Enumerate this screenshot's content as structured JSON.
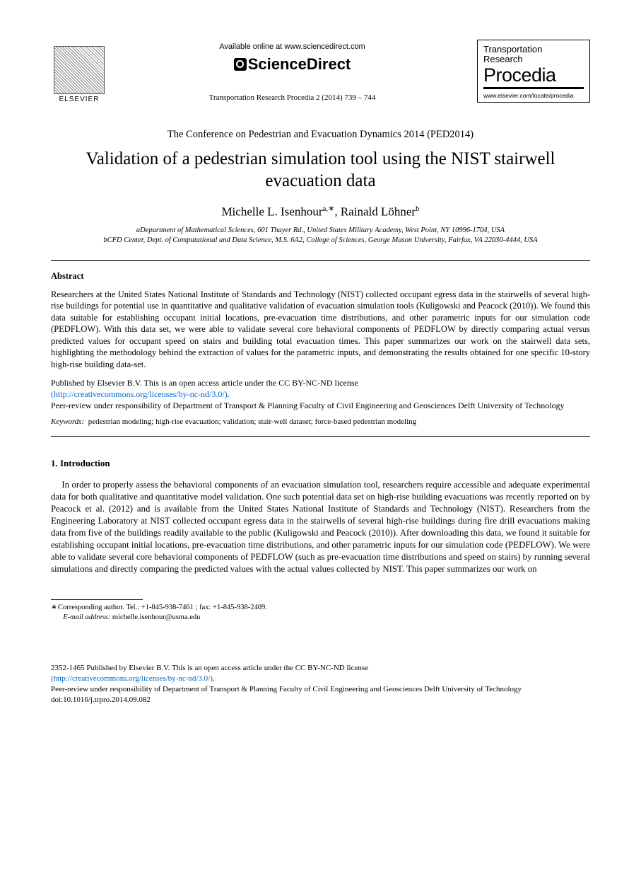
{
  "header": {
    "elsevier_label": "ELSEVIER",
    "available_online": "Available online at www.sciencedirect.com",
    "sciencedirect": "ScienceDirect",
    "journal_reference": "Transportation Research Procedia 2 (2014) 739 – 744",
    "procedia_line1": "Transportation",
    "procedia_line2": "Research",
    "procedia_main": "Procedia",
    "procedia_url": "www.elsevier.com/locate/procedia"
  },
  "conference": "The Conference on Pedestrian and Evacuation Dynamics 2014 (PED2014)",
  "title": "Validation of a pedestrian simulation tool using the NIST stairwell evacuation data",
  "authors_html": "Michelle L. Isenhour",
  "author1_sup": "a,∗",
  "authors_sep": ", ",
  "author2": "Rainald Löhner",
  "author2_sup": "b",
  "affiliations": {
    "a": "aDepartment of Mathematical Sciences, 601 Thayer Rd., United States Military Academy, West Point, NY 10996-1704, USA",
    "b": "bCFD Center, Dept. of Computational and Data Science, M.S. 6A2, College of Sciences, George Mason University, Fairfax, VA 22030-4444, USA"
  },
  "abstract_heading": "Abstract",
  "abstract_body": "Researchers at the United States National Institute of Standards and Technology (NIST) collected occupant egress data in the stairwells of several high-rise buildings for potential use in quantitative and qualitative validation of evacuation simulation tools (Kuligowski and Peacock (2010)). We found this data suitable for establishing occupant initial locations, pre-evacuation time distributions, and other parametric inputs for our simulation code (PEDFLOW). With this data set, we were able to validate several core behavioral components of PEDFLOW by directly comparing actual versus predicted values for occupant speed on stairs and building total evacuation times. This paper summarizes our work on the stairwell data sets, highlighting the methodology behind the extraction of values for the parametric inputs, and demonstrating the results obtained for one specific 10-story high-rise building data-set.",
  "license": {
    "line1": "Published by Elsevier B.V. This is an open access article under the CC BY-NC-ND license",
    "link_text": "(http://creativecommons.org/licenses/by-nc-nd/3.0/)",
    "line2_suffix": ".",
    "peer_review": "Peer-review under responsibility of Department of Transport & Planning Faculty of Civil Engineering and Geosciences Delft University of Technology"
  },
  "keywords_label": "Keywords:",
  "keywords": "pedestrian modeling; high-rise evacuation; validation; stair-well dataset; force-based pedestrian modeling",
  "section1_heading": "1. Introduction",
  "section1_body": "In order to properly assess the behavioral components of an evacuation simulation tool, researchers require accessible and adequate experimental data for both qualitative and quantitative model validation. One such potential data set on high-rise building evacuations was recently reported on by Peacock et al. (2012) and is available from the United States National Institute of Standards and Technology (NIST). Researchers from the Engineering Laboratory at NIST collected occupant egress data in the stairwells of several high-rise buildings during fire drill evacuations making data from five of the buildings readily available to the public (Kuligowski and Peacock (2010)). After downloading this data, we found it suitable for establishing occupant initial locations, pre-evacuation time distributions, and other parametric inputs for our simulation code (PEDFLOW). We were able to validate several core behavioral components of PEDFLOW (such as pre-evacuation time distributions and speed on stairs) by running several simulations and directly comparing the predicted values with the actual values collected by NIST. This paper summarizes our work on",
  "footnote": {
    "corresponding": "Corresponding author. Tel.: +1-845-938-7461 ; fax: +1-845-938-2409.",
    "email_label": "E-mail address:",
    "email": "michelle.isenhour@usma.edu"
  },
  "footer": {
    "issn_line": "2352-1465 Published by Elsevier B.V. This is an open access article under the CC BY-NC-ND license",
    "link_text": "(http://creativecommons.org/licenses/by-nc-nd/3.0/)",
    "link_suffix": ".",
    "peer_review": "Peer-review under responsibility of Department of Transport & Planning Faculty of Civil Engineering and Geosciences Delft University of Technology",
    "doi": "doi:10.1016/j.trpro.2014.09.082"
  },
  "colors": {
    "text": "#000000",
    "link": "#0066cc",
    "background": "#ffffff"
  }
}
